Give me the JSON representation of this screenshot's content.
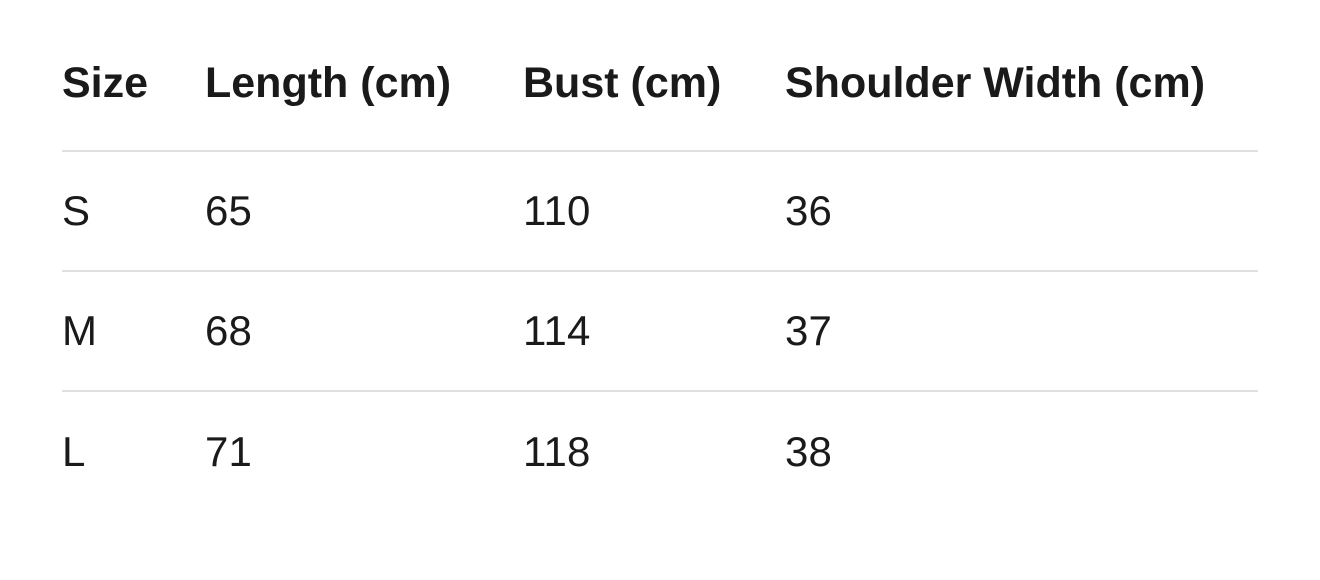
{
  "chart_data": {
    "type": "table",
    "title": "",
    "columns": [
      "Size",
      "Length (cm)",
      "Bust (cm)",
      "Shoulder Width (cm)"
    ],
    "rows": [
      [
        "S",
        "65",
        "110",
        "36"
      ],
      [
        "M",
        "68",
        "114",
        "37"
      ],
      [
        "L",
        "71",
        "118",
        "38"
      ]
    ]
  },
  "colors": {
    "text": "#1a1a1a",
    "divider": "#e0e0e0",
    "background": "#ffffff"
  }
}
